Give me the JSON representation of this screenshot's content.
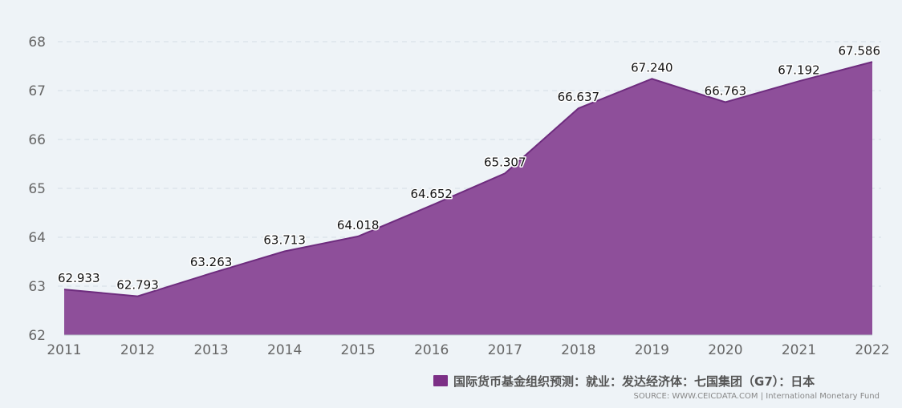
{
  "chart_data": {
    "type": "area",
    "x": [
      "2011",
      "2012",
      "2013",
      "2014",
      "2015",
      "2016",
      "2017",
      "2018",
      "2019",
      "2020",
      "2021",
      "2022"
    ],
    "series": [
      {
        "name": "国际货币基金组织预测：就业：发达经济体：七国集团（G7）：日本",
        "values": [
          62.933,
          62.793,
          63.263,
          63.713,
          64.018,
          64.652,
          65.307,
          66.637,
          67.24,
          66.763,
          67.192,
          67.586
        ],
        "labels": [
          "62.933",
          "62.793",
          "63.263",
          "63.713",
          "64.018",
          "64.652",
          "65.307",
          "66.637",
          "67.240",
          "66.763",
          "67.192",
          "67.586"
        ]
      }
    ],
    "y_ticks": [
      "62",
      "63",
      "64",
      "65",
      "66",
      "67",
      "68"
    ],
    "ylim": [
      62,
      68
    ],
    "grid": true,
    "legend_position": "bottom-right",
    "colors": {
      "fill": "#8e4f9a",
      "line": "#6e2c7e",
      "legend_swatch": "#7c2f86",
      "grid": "#d4dde4"
    }
  },
  "source": "SOURCE: WWW.CEICDATA.COM | International Monetary Fund"
}
